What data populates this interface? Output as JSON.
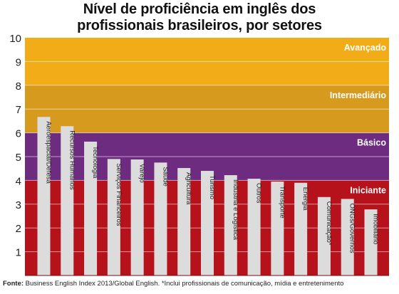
{
  "chart_data": {
    "type": "bar",
    "title_line1": "Nível de proficiência em inglês dos",
    "title_line2": "profissionais brasileiros, por setores",
    "xlabel": "",
    "ylabel": "",
    "ylim": [
      0,
      10
    ],
    "yticks": [
      "1",
      "2",
      "3",
      "4",
      "5",
      "6",
      "7",
      "8",
      "9",
      "10"
    ],
    "grid": true,
    "bands": [
      {
        "label": "Iniciante",
        "from": 0,
        "to": 4,
        "color": "#b5121b"
      },
      {
        "label": "Básico",
        "from": 4,
        "to": 6,
        "color": "#6e2c80"
      },
      {
        "label": "Intermediário",
        "from": 6,
        "to": 8,
        "color": "#d69a1f"
      },
      {
        "label": "Avançado",
        "from": 8,
        "to": 10,
        "color": "#f2ac17"
      }
    ],
    "categories": [
      "Aeroespacial/Defesa",
      "Recursos Humanos",
      "Tecnologia",
      "Serviços Financeiros",
      "Varejo",
      "Saúde",
      "Agricultura",
      "Turismo",
      "Indústria e Logística",
      "Outros",
      "Transporte",
      "Energia",
      "Comunicação*",
      "ONGs/Governos",
      "Imobiliário"
    ],
    "values": [
      6.67,
      6.28,
      5.63,
      4.9,
      4.88,
      4.75,
      4.52,
      4.4,
      4.22,
      4.07,
      3.95,
      3.9,
      3.3,
      3.22,
      2.78
    ],
    "bar_color": "#dcdcdc"
  },
  "source_label": "Fonte:",
  "source_text": " Business English Index 2013/Global English. *Inclui profissionais de comunicação, mídia e entretenimento"
}
